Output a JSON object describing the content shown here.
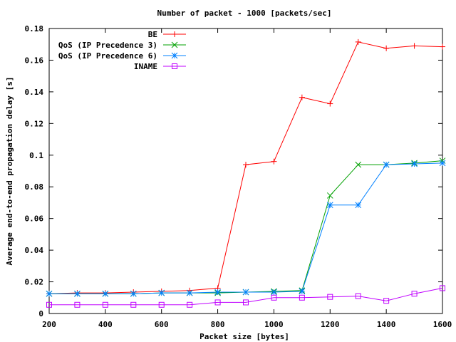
{
  "chart_data": {
    "type": "line",
    "title": "Number of packet - 1000 [packets/sec]",
    "xlabel": "Packet size [bytes]",
    "ylabel": "Average end-to-end propagation delay [s]",
    "xlim": [
      200,
      1600
    ],
    "ylim": [
      0,
      0.18
    ],
    "xticks": [
      200,
      400,
      600,
      800,
      1000,
      1200,
      1400,
      1600
    ],
    "yticks": [
      0,
      0.02,
      0.04,
      0.06,
      0.08,
      0.1,
      0.12,
      0.14,
      0.16,
      0.18
    ],
    "xtick_labels": [
      "200",
      "400",
      "600",
      "800",
      "1000",
      "1200",
      "1400",
      "1600"
    ],
    "ytick_labels": [
      "0",
      "0.02",
      "0.04",
      "0.06",
      "0.08",
      "0.1",
      "0.12",
      "0.14",
      "0.16",
      "0.18"
    ],
    "grid": false,
    "legend_position": "top-right",
    "x": [
      200,
      300,
      400,
      500,
      600,
      700,
      800,
      900,
      1000,
      1100,
      1200,
      1300,
      1400,
      1500,
      1600
    ],
    "series": [
      {
        "name": "BE",
        "color": "#ff0000",
        "marker": "plus",
        "values": [
          0.0125,
          0.013,
          0.013,
          0.0135,
          0.014,
          0.0145,
          0.016,
          0.094,
          0.096,
          0.1365,
          0.1325,
          0.1715,
          0.1675,
          0.169,
          0.1685
        ]
      },
      {
        "name": "QoS (IP Precedence 3)",
        "color": "#00a000",
        "marker": "cross",
        "values": [
          0.0125,
          0.0125,
          0.0125,
          0.0125,
          0.013,
          0.013,
          0.013,
          0.0135,
          0.014,
          0.0145,
          0.0745,
          0.094,
          0.094,
          0.095,
          0.0965
        ]
      },
      {
        "name": "QoS (IP Precedence 6)",
        "color": "#0080ff",
        "marker": "star",
        "values": [
          0.0125,
          0.0125,
          0.0125,
          0.0125,
          0.013,
          0.013,
          0.0135,
          0.0135,
          0.0135,
          0.014,
          0.0685,
          0.0685,
          0.094,
          0.0945,
          0.095
        ]
      },
      {
        "name": "INAME",
        "color": "#c000ff",
        "marker": "square",
        "values": [
          0.0055,
          0.0055,
          0.0055,
          0.0055,
          0.0055,
          0.0055,
          0.007,
          0.007,
          0.01,
          0.01,
          0.0105,
          0.011,
          0.008,
          0.0125,
          0.016
        ]
      }
    ]
  }
}
